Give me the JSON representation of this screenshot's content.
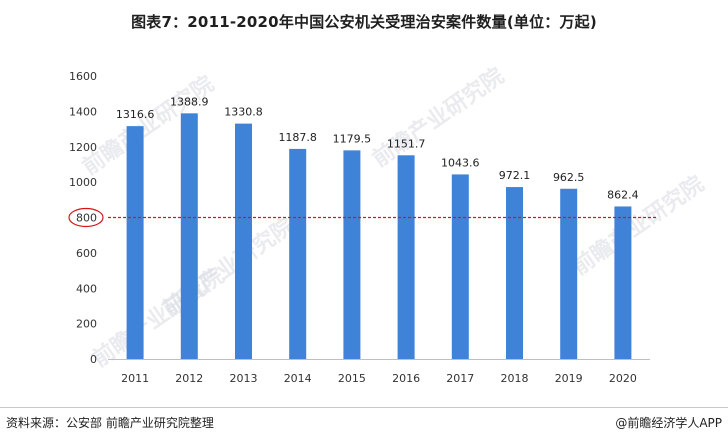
{
  "title": "图表7：2011-2020年中国公安机关受理治安案件数量(单位：万起)",
  "watermark": "前瞻产业研究院",
  "footer": {
    "source": "资料来源：公安部 前瞻产业研究院整理",
    "brand": "@前瞻经济学人APP"
  },
  "chart_data": {
    "type": "bar",
    "categories": [
      "2011",
      "2012",
      "2013",
      "2014",
      "2015",
      "2016",
      "2017",
      "2018",
      "2019",
      "2020"
    ],
    "values": [
      1316.6,
      1388.9,
      1330.8,
      1187.8,
      1179.5,
      1151.7,
      1043.6,
      972.1,
      962.5,
      862.4
    ],
    "value_labels": [
      "1316.6",
      "1388.9",
      "1330.8",
      "1187.8",
      "1179.5",
      "1151.7",
      "1043.6",
      "972.1",
      "962.5",
      "862.4"
    ],
    "ylim": [
      0,
      1600
    ],
    "yticks": [
      "0",
      "200",
      "400",
      "600",
      "800",
      "1000",
      "1200",
      "1400",
      "1600"
    ],
    "reference_line": {
      "value": 800,
      "style": "dashed",
      "highlight": "circled tick"
    },
    "bar_color": "#3f83d9",
    "reference_color": "#d9141a",
    "grid": false
  }
}
